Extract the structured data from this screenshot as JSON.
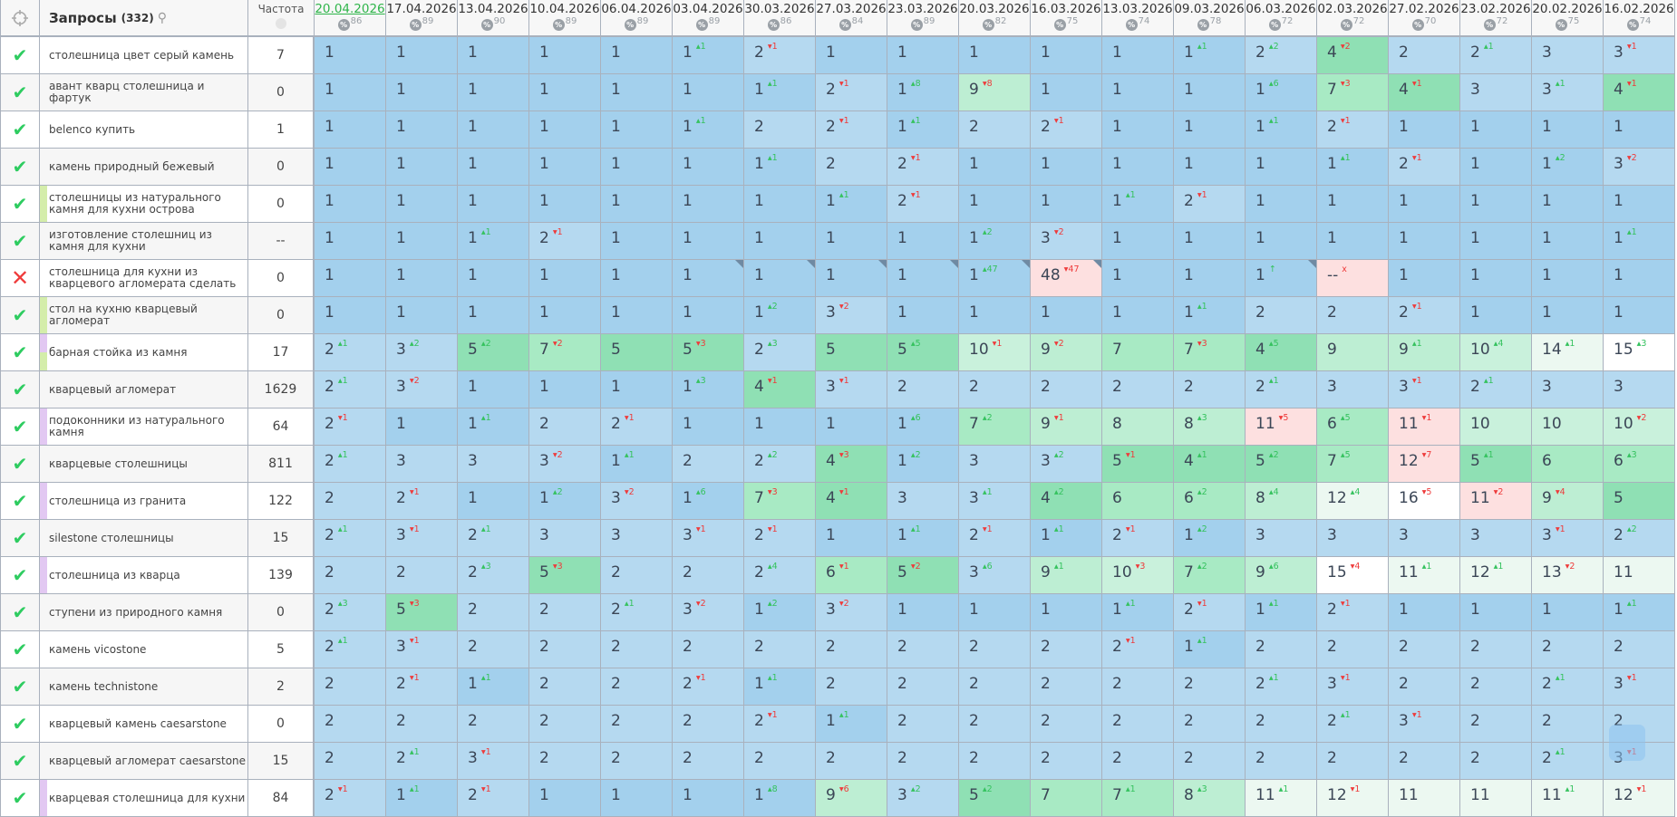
{
  "header": {
    "query_title": "Запросы",
    "query_count": "(332)",
    "frequency_label": "Частота"
  },
  "dates": [
    {
      "date": "20.04.2026",
      "pct": "86"
    },
    {
      "date": "17.04.2026",
      "pct": "89"
    },
    {
      "date": "13.04.2026",
      "pct": "90"
    },
    {
      "date": "10.04.2026",
      "pct": "89"
    },
    {
      "date": "06.04.2026",
      "pct": "89"
    },
    {
      "date": "03.04.2026",
      "pct": "89"
    },
    {
      "date": "30.03.2026",
      "pct": "86"
    },
    {
      "date": "27.03.2026",
      "pct": "84"
    },
    {
      "date": "23.03.2026",
      "pct": "89"
    },
    {
      "date": "20.03.2026",
      "pct": "82"
    },
    {
      "date": "16.03.2026",
      "pct": "75"
    },
    {
      "date": "13.03.2026",
      "pct": "74"
    },
    {
      "date": "09.03.2026",
      "pct": "78"
    },
    {
      "date": "06.03.2026",
      "pct": "72"
    },
    {
      "date": "02.03.2026",
      "pct": "72"
    },
    {
      "date": "27.02.2026",
      "pct": "70"
    },
    {
      "date": "23.02.2026",
      "pct": "72"
    },
    {
      "date": "20.02.2026",
      "pct": "75"
    },
    {
      "date": "16.02.2026",
      "pct": "74"
    }
  ],
  "colors": {
    "pos1": "#a3d0ed",
    "pos2_3": "#b5d9f0",
    "pos4_5": "#8fe0b4",
    "pos6_7": "#a8eac4",
    "pos8_9": "#bdeed3",
    "pos10": "#c9f1dc",
    "pos11_14": "#ecf8f1",
    "pos15plus": "#ffffff",
    "dropped": "#fde0e0",
    "improved": "#35c25e",
    "worsened": "#ee3b3b",
    "group_green": "#d4edaa",
    "group_purple": "#e2c8f2"
  },
  "rows": [
    {
      "status": "ok",
      "query": "столешница цвет серый камень",
      "freq": "7",
      "marker": "",
      "cells": [
        "1",
        "1",
        "1",
        "1",
        "1",
        "1+1",
        "2-1",
        "1",
        "1",
        "1",
        "1",
        "1",
        "1+1",
        "2+2",
        "4-2",
        "2",
        "2+1",
        "3",
        "3-1"
      ]
    },
    {
      "status": "ok",
      "query": "авант кварц столешница и фартук",
      "freq": "0",
      "marker": "",
      "cells": [
        "1",
        "1",
        "1",
        "1",
        "1",
        "1",
        "1+1",
        "2-1",
        "1+8",
        "9-8",
        "1",
        "1",
        "1",
        "1+6",
        "7-3",
        "4-1",
        "3",
        "3+1",
        "4-1"
      ]
    },
    {
      "status": "ok",
      "query": "belenco купить",
      "freq": "1",
      "marker": "",
      "cells": [
        "1",
        "1",
        "1",
        "1",
        "1",
        "1+1",
        "2",
        "2-1",
        "1+1",
        "2",
        "2-1",
        "1",
        "1",
        "1+1",
        "2-1",
        "1",
        "1",
        "1",
        "1"
      ]
    },
    {
      "status": "ok",
      "query": "камень природный бежевый",
      "freq": "0",
      "marker": "",
      "cells": [
        "1",
        "1",
        "1",
        "1",
        "1",
        "1",
        "1+1",
        "2",
        "2-1",
        "1",
        "1",
        "1",
        "1",
        "1",
        "1+1",
        "2-1",
        "1",
        "1+2",
        "3-2"
      ]
    },
    {
      "status": "ok",
      "query": "столешницы из натурального камня для кухни острова",
      "freq": "0",
      "marker": "green",
      "cells": [
        "1",
        "1",
        "1",
        "1",
        "1",
        "1",
        "1",
        "1+1",
        "2-1",
        "1",
        "1",
        "1+1",
        "2-1",
        "1",
        "1",
        "1",
        "1",
        "1",
        "1"
      ]
    },
    {
      "status": "ok",
      "query": "изготовление столешниц из камня для кухни",
      "freq": "--",
      "marker": "",
      "cells": [
        "1",
        "1",
        "1+1",
        "2-1",
        "1",
        "1",
        "1",
        "1",
        "1",
        "1+2",
        "3-2",
        "1",
        "1",
        "1",
        "1",
        "1",
        "1",
        "1",
        "1+1"
      ]
    },
    {
      "status": "fail",
      "query": "столешница для кухни из кварцевого агломерата сделать",
      "freq": "0",
      "marker": "",
      "cells": [
        "1",
        "1",
        "1",
        "1",
        "1",
        "1n",
        "1n",
        "1n",
        "1n",
        "1+47n",
        "48-47!n",
        "1",
        "1",
        "1↑n",
        "--x!",
        "1",
        "1",
        "1",
        "1"
      ]
    },
    {
      "status": "ok",
      "query": "стол на кухню кварцевый агломерат",
      "freq": "0",
      "marker": "green",
      "cells": [
        "1",
        "1",
        "1",
        "1",
        "1",
        "1",
        "1+2",
        "3-2",
        "1",
        "1",
        "1",
        "1",
        "1+1",
        "2",
        "2",
        "2-1",
        "1",
        "1",
        "1"
      ]
    },
    {
      "status": "ok",
      "query": "барная стойка из камня",
      "freq": "17",
      "marker": "purple-green",
      "cells": [
        "2+1",
        "3+2",
        "5+2",
        "7-2",
        "5",
        "5-3",
        "2+3",
        "5",
        "5+5",
        "10-1",
        "9-2",
        "7",
        "7-3",
        "4+5",
        "9",
        "9+1",
        "10+4",
        "14+1",
        "15+3"
      ]
    },
    {
      "status": "ok",
      "query": "кварцевый агломерат",
      "freq": "1629",
      "marker": "",
      "cells": [
        "2+1",
        "3-2",
        "1",
        "1",
        "1",
        "1+3",
        "4-1",
        "3-1",
        "2",
        "2",
        "2",
        "2",
        "2",
        "2+1",
        "3",
        "3-1",
        "2+1",
        "3",
        "3"
      ]
    },
    {
      "status": "ok",
      "query": "подоконники из натурального камня",
      "freq": "64",
      "marker": "purple",
      "cells": [
        "2-1",
        "1",
        "1+1",
        "2",
        "2-1",
        "1",
        "1",
        "1",
        "1+6",
        "7+2",
        "9-1",
        "8",
        "8+3",
        "11-5!",
        "6+5",
        "11-1!",
        "10",
        "10",
        "10-2"
      ]
    },
    {
      "status": "ok",
      "query": "кварцевые столешницы",
      "freq": "811",
      "marker": "",
      "cells": [
        "2+1",
        "3",
        "3",
        "3-2",
        "1+1",
        "2",
        "2+2",
        "4-3",
        "1+2",
        "3",
        "3+2",
        "5-1",
        "4+1",
        "5+2",
        "7+5",
        "12-7!",
        "5+1",
        "6",
        "6+3"
      ]
    },
    {
      "status": "ok",
      "query": "столешница из гранита",
      "freq": "122",
      "marker": "purple",
      "cells": [
        "2",
        "2-1",
        "1",
        "1+2",
        "3-2",
        "1+6",
        "7-3",
        "4-1",
        "3",
        "3+1",
        "4+2",
        "6",
        "6+2",
        "8+4",
        "12+4",
        "16-5",
        "11-2!",
        "9-4",
        "5"
      ]
    },
    {
      "status": "ok",
      "query": "silestone столешницы",
      "freq": "15",
      "marker": "",
      "cells": [
        "2+1",
        "3-1",
        "2+1",
        "3",
        "3",
        "3-1",
        "2-1",
        "1",
        "1+1",
        "2-1",
        "1+1",
        "2-1",
        "1+2",
        "3",
        "3",
        "3",
        "3",
        "3-1",
        "2+2"
      ]
    },
    {
      "status": "ok",
      "query": "столешница из кварца",
      "freq": "139",
      "marker": "purple",
      "cells": [
        "2",
        "2",
        "2+3",
        "5-3",
        "2",
        "2",
        "2+4",
        "6-1",
        "5-2",
        "3+6",
        "9+1",
        "10-3",
        "7+2",
        "9+6",
        "15-4",
        "11+1",
        "12+1",
        "13-2",
        "11"
      ]
    },
    {
      "status": "ok",
      "query": "ступени из природного камня",
      "freq": "0",
      "marker": "",
      "cells": [
        "2+3",
        "5-3",
        "2",
        "2",
        "2+1",
        "3-2",
        "1+2",
        "3-2",
        "1",
        "1",
        "1",
        "1+1",
        "2-1",
        "1+1",
        "2-1",
        "1",
        "1",
        "1",
        "1+1"
      ]
    },
    {
      "status": "ok",
      "query": "камень vicostone",
      "freq": "5",
      "marker": "",
      "cells": [
        "2+1",
        "3-1",
        "2",
        "2",
        "2",
        "2",
        "2",
        "2",
        "2",
        "2",
        "2",
        "2-1",
        "1+1",
        "2",
        "2",
        "2",
        "2",
        "2",
        "2"
      ]
    },
    {
      "status": "ok",
      "query": "камень technistone",
      "freq": "2",
      "marker": "",
      "cells": [
        "2",
        "2-1",
        "1+1",
        "2",
        "2",
        "2-1",
        "1+1",
        "2",
        "2",
        "2",
        "2",
        "2",
        "2",
        "2+1",
        "3-1",
        "2",
        "2",
        "2+1",
        "3-1"
      ]
    },
    {
      "status": "ok",
      "query": "кварцевый камень caesarstone",
      "freq": "0",
      "marker": "",
      "cells": [
        "2",
        "2",
        "2",
        "2",
        "2",
        "2",
        "2-1",
        "1+1",
        "2",
        "2",
        "2",
        "2",
        "2",
        "2",
        "2+1",
        "3-1",
        "2",
        "2",
        "2"
      ]
    },
    {
      "status": "ok",
      "query": "кварцевый агломерат caesarstone",
      "freq": "15",
      "marker": "",
      "cells": [
        "2",
        "2+1",
        "3-1",
        "2",
        "2",
        "2",
        "2",
        "2",
        "2",
        "2",
        "2",
        "2",
        "2",
        "2",
        "2",
        "2",
        "2",
        "2+1",
        "3-1"
      ]
    },
    {
      "status": "ok",
      "query": "кварцевая столешница для кухни",
      "freq": "84",
      "marker": "purple",
      "cells": [
        "2-1",
        "1+1",
        "2-1",
        "1",
        "1",
        "1",
        "1+8",
        "9-6",
        "3+2",
        "5+2",
        "7",
        "7+1",
        "8+3",
        "11+1",
        "12-1",
        "11",
        "11",
        "11+1",
        "12-1"
      ]
    }
  ]
}
